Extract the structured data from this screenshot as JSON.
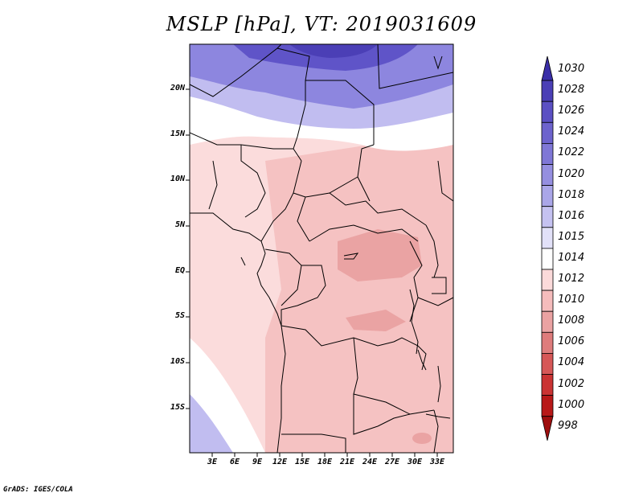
{
  "title": "MSLP [hPa], VT: 2019031609",
  "footer": "GrADS: IGES/COLA",
  "lat_labels": [
    "20N",
    "15N",
    "10N",
    "5N",
    "EQ",
    "5S",
    "10S",
    "15S"
  ],
  "lon_labels": [
    "3E",
    "6E",
    "9E",
    "12E",
    "15E",
    "18E",
    "21E",
    "24E",
    "27E",
    "30E",
    "33E"
  ],
  "colorbar": {
    "levels": [
      "1030",
      "1028",
      "1026",
      "1024",
      "1022",
      "1020",
      "1018",
      "1016",
      "1015",
      "1014",
      "1012",
      "1010",
      "1008",
      "1006",
      "1004",
      "1002",
      "1000",
      "998"
    ],
    "colors": [
      "#3a2ea8",
      "#4b3fb6",
      "#5b50c3",
      "#6d63cd",
      "#7f77d6",
      "#958fe0",
      "#aaa6e8",
      "#c5c2f1",
      "#e2e1f8",
      "#ffffff",
      "#fbdada",
      "#f5bcbc",
      "#eaa2a2",
      "#de7c7c",
      "#d65757",
      "#ca3333",
      "#b81818",
      "#9e0e0e"
    ]
  },
  "map_fill": {
    "high_pressure": "#8d86df",
    "very_high": "#5f54c8",
    "mid_high": "#c1bdf0",
    "neutral": "#ffffff",
    "low_1012": "#fbdcdc",
    "low_1010": "#f5c2c2",
    "low_1008": "#eaa3a3"
  }
}
